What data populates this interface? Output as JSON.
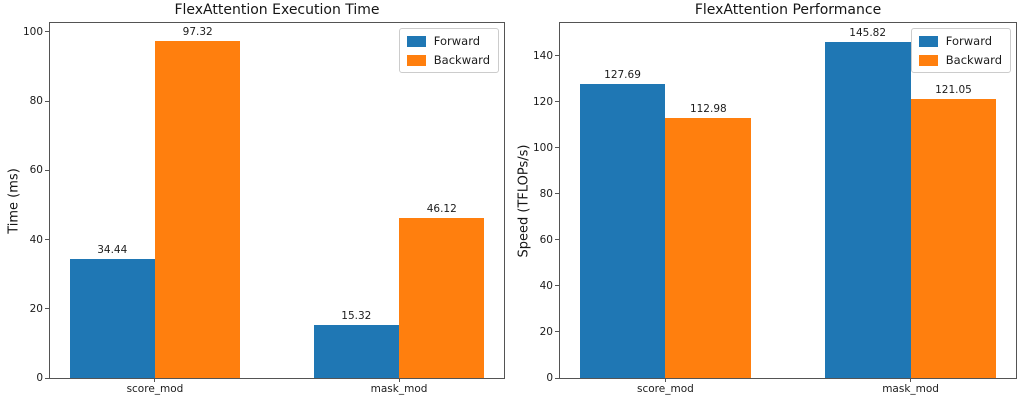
{
  "chart_data": [
    {
      "type": "bar",
      "title": "FlexAttention Execution Time",
      "xlabel": "",
      "ylabel": "Time (ms)",
      "categories": [
        "score_mod",
        "mask_mod"
      ],
      "series": [
        {
          "name": "Forward",
          "color": "#1f77b4",
          "values": [
            34.44,
            15.32
          ]
        },
        {
          "name": "Backward",
          "color": "#ff7f0e",
          "values": [
            97.32,
            46.12
          ]
        }
      ],
      "yticks": [
        0,
        20,
        40,
        60,
        80,
        100
      ],
      "ylim": [
        0,
        102.6
      ],
      "grid": false,
      "legend_position": "upper right"
    },
    {
      "type": "bar",
      "title": "FlexAttention Performance",
      "xlabel": "",
      "ylabel": "Speed (TFLOPs/s)",
      "categories": [
        "score_mod",
        "mask_mod"
      ],
      "series": [
        {
          "name": "Forward",
          "color": "#1f77b4",
          "values": [
            127.69,
            145.82
          ]
        },
        {
          "name": "Backward",
          "color": "#ff7f0e",
          "values": [
            112.98,
            121.05
          ]
        }
      ],
      "yticks": [
        0,
        20,
        40,
        60,
        80,
        100,
        120,
        140
      ],
      "ylim": [
        0,
        154.2
      ],
      "grid": false,
      "legend_position": "upper right"
    }
  ],
  "colors": {
    "forward": "#1f77b4",
    "backward": "#ff7f0e",
    "spine": "#545454"
  }
}
